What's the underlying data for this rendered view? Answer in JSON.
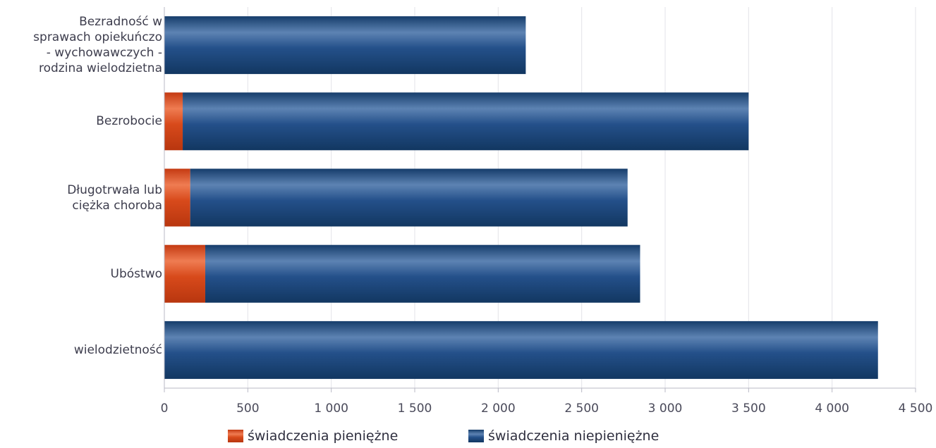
{
  "chart_data": {
    "type": "bar",
    "orientation": "horizontal",
    "stacked": true,
    "categories": [
      "Bezradność w sprawach opiekuńczo - wychowawczych - rodzina wielodzietna",
      "Bezrobocie",
      "Długotrwała lub ciężka choroba",
      "Ubóstwo",
      "wielodzietność"
    ],
    "category_lines": [
      [
        "Bezradność w",
        "sprawach opiekuńczo",
        "- wychowawczych -",
        "rodzina wielodzietna"
      ],
      [
        "Bezrobocie"
      ],
      [
        "Długotrwała lub",
        "ciężka choroba"
      ],
      [
        "Ubóstwo"
      ],
      [
        "wielodzietność"
      ]
    ],
    "series": [
      {
        "name": "świadczenia pieniężne",
        "color": "#d84a1b",
        "values": [
          0,
          110,
          155,
          245,
          0
        ]
      },
      {
        "name": "świadczenia niepieniężne",
        "color": "#1f4a7c",
        "values": [
          2165,
          3390,
          2620,
          2605,
          4275
        ]
      }
    ],
    "xlim": [
      0,
      4500
    ],
    "xticks": [
      0,
      500,
      1000,
      1500,
      2000,
      2500,
      3000,
      3500,
      4000,
      4500
    ],
    "xtick_labels": [
      "0",
      "500",
      "1 000",
      "1 500",
      "2 000",
      "2 500",
      "3 000",
      "3 500",
      "4 000",
      "4 500"
    ],
    "grid": true,
    "legend_position": "bottom"
  }
}
